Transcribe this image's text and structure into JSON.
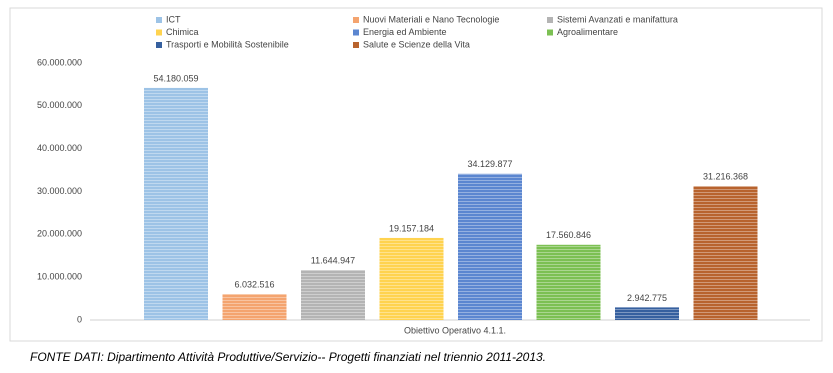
{
  "chart_data": {
    "type": "bar",
    "categories": [
      "Obiettivo Operativo 4.1.1."
    ],
    "ylim": [
      0,
      60000000
    ],
    "yticks": [
      0,
      {
        "value": 10000000,
        "label": "10.000.000"
      },
      {
        "value": 20000000,
        "label": "20.000.000"
      },
      {
        "value": 30000000,
        "label": "30.000.000"
      },
      {
        "value": 40000000,
        "label": "40.000.000"
      },
      {
        "value": 50000000,
        "label": "50.000.000"
      },
      {
        "value": 60000000,
        "label": "60.000.000"
      }
    ],
    "grid": false,
    "legend": "top",
    "series": [
      {
        "name": "ICT",
        "color": "#9dc3e6",
        "values": [
          54180059
        ],
        "value_labels": [
          "54.180.059"
        ]
      },
      {
        "name": "Nuovi Materiali e Nano Tecnologie",
        "color": "#f4a46f",
        "values": [
          6032516
        ],
        "value_labels": [
          "6.032.516"
        ]
      },
      {
        "name": "Sistemi Avanzati e manifattura",
        "color": "#b4b4b4",
        "values": [
          11644947
        ],
        "value_labels": [
          "11.644.947"
        ]
      },
      {
        "name": "Chimica",
        "color": "#ffd34f",
        "values": [
          19157184
        ],
        "value_labels": [
          "19.157.184"
        ]
      },
      {
        "name": "Energia ed Ambiente",
        "color": "#5b86d0",
        "values": [
          34129877
        ],
        "value_labels": [
          "34.129.877"
        ]
      },
      {
        "name": "Agroalimentare",
        "color": "#7cc053",
        "values": [
          17560846
        ],
        "value_labels": [
          "17.560.846"
        ]
      },
      {
        "name": "Trasporti e Mobilità Sostenibile",
        "color": "#36609f",
        "values": [
          2942775
        ],
        "value_labels": [
          "2.942.775"
        ]
      },
      {
        "name": "Salute e Scienze della Vita",
        "color": "#b8632e",
        "values": [
          31216368
        ],
        "value_labels": [
          "31.216.368"
        ]
      }
    ]
  },
  "caption": "FONTE DATI: Dipartimento Attività Produttive/Servizio-- Progetti finanziati nel triennio 2011-2013."
}
